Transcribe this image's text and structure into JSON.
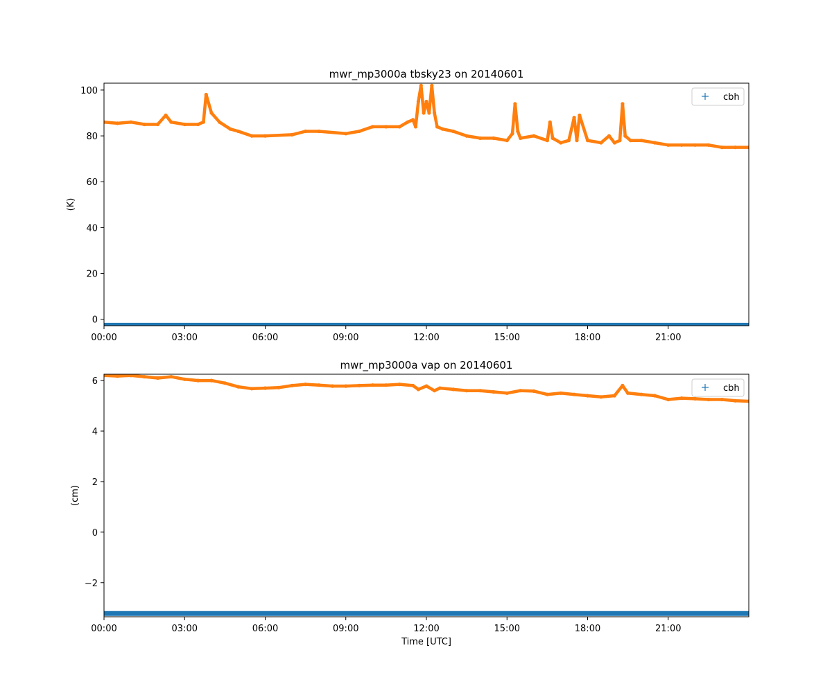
{
  "figure": {
    "background": "#ffffff"
  },
  "chart_data": [
    {
      "type": "line",
      "title": "mwr_mp3000a tbsky23 on 20140601",
      "xlabel": "",
      "ylabel": "(K)",
      "xlim": [
        0,
        24
      ],
      "ylim": [
        -2.8,
        103
      ],
      "xticks": [
        0,
        3,
        6,
        9,
        12,
        15,
        18,
        21
      ],
      "xtick_labels": [
        "00:00",
        "03:00",
        "06:00",
        "09:00",
        "12:00",
        "15:00",
        "18:00",
        "21:00"
      ],
      "yticks": [
        0,
        20,
        40,
        60,
        80,
        100
      ],
      "ytick_labels": [
        "0",
        "20",
        "40",
        "60",
        "80",
        "100"
      ],
      "legend": {
        "position": "top-right",
        "entries": [
          {
            "label": "cbh",
            "marker": "+",
            "color": "#1f77b4"
          }
        ]
      },
      "x_unit": "hours UTC",
      "series": [
        {
          "name": "cbh",
          "color": "#1f77b4",
          "style": "markers",
          "x": [
            0,
            24
          ],
          "values": [
            -2.6,
            -2.6
          ]
        },
        {
          "color": "#ff7f0e",
          "style": "line+markers",
          "x": [
            0,
            0.5,
            1.0,
            1.5,
            2.0,
            2.3,
            2.5,
            3.0,
            3.5,
            3.7,
            3.8,
            4.0,
            4.3,
            4.7,
            5.0,
            5.5,
            6.0,
            7.0,
            7.5,
            8.0,
            9.0,
            9.5,
            10.0,
            10.5,
            11.0,
            11.3,
            11.5,
            11.6,
            11.7,
            11.8,
            11.9,
            12.0,
            12.1,
            12.2,
            12.3,
            12.4,
            12.6,
            13.0,
            13.5,
            14.0,
            14.5,
            15.0,
            15.2,
            15.3,
            15.4,
            15.5,
            16.0,
            16.5,
            16.6,
            16.7,
            17.0,
            17.3,
            17.5,
            17.6,
            17.7,
            18.0,
            18.5,
            18.8,
            19.0,
            19.2,
            19.3,
            19.4,
            19.6,
            20.0,
            20.5,
            21.0,
            21.5,
            22.0,
            22.5,
            23.0,
            23.5,
            24.0
          ],
          "values": [
            86,
            85.5,
            86,
            85,
            85,
            89,
            86,
            85,
            85,
            86,
            98,
            90,
            86,
            83,
            82,
            80,
            80,
            80.5,
            82,
            82,
            81,
            82,
            84,
            84,
            84,
            86,
            87,
            84,
            95,
            102,
            90,
            95,
            90,
            102,
            90,
            84,
            83,
            82,
            80,
            79,
            79,
            78,
            81,
            94,
            82,
            79,
            80,
            78,
            86,
            79,
            77,
            78,
            88,
            78,
            89,
            78,
            77,
            80,
            77,
            78,
            94,
            80,
            78,
            78,
            77,
            76,
            76,
            76,
            76,
            75,
            75,
            75
          ]
        }
      ]
    },
    {
      "type": "line",
      "title": "mwr_mp3000a vap on 20140601",
      "xlabel": "Time [UTC]",
      "ylabel": "(cm)",
      "xlim": [
        0,
        24
      ],
      "ylim": [
        -3.35,
        6.25
      ],
      "xticks": [
        0,
        3,
        6,
        9,
        12,
        15,
        18,
        21
      ],
      "xtick_labels": [
        "00:00",
        "03:00",
        "06:00",
        "09:00",
        "12:00",
        "15:00",
        "18:00",
        "21:00"
      ],
      "yticks": [
        -2,
        0,
        2,
        4,
        6
      ],
      "ytick_labels": [
        "−2",
        "0",
        "2",
        "4",
        "6"
      ],
      "legend": {
        "position": "top-right",
        "entries": [
          {
            "label": "cbh",
            "marker": "+",
            "color": "#1f77b4"
          }
        ]
      },
      "x_unit": "hours UTC",
      "series": [
        {
          "name": "cbh",
          "color": "#1f77b4",
          "style": "markers",
          "x": [
            0,
            24
          ],
          "values": [
            -3.22,
            -3.22
          ]
        },
        {
          "color": "#ff7f0e",
          "style": "line+markers",
          "x": [
            0,
            0.5,
            1.0,
            1.5,
            2.0,
            2.5,
            3.0,
            3.5,
            4.0,
            4.5,
            5.0,
            5.5,
            6.0,
            6.5,
            7.0,
            7.5,
            8.0,
            8.5,
            9.0,
            9.5,
            10.0,
            10.5,
            11.0,
            11.5,
            11.7,
            12.0,
            12.3,
            12.5,
            13.0,
            13.5,
            14.0,
            14.5,
            15.0,
            15.5,
            16.0,
            16.5,
            17.0,
            17.5,
            18.0,
            18.5,
            19.0,
            19.3,
            19.5,
            20.0,
            20.5,
            21.0,
            21.5,
            22.0,
            22.5,
            23.0,
            23.5,
            24.0
          ],
          "values": [
            6.2,
            6.18,
            6.2,
            6.15,
            6.1,
            6.15,
            6.05,
            6.0,
            6.0,
            5.9,
            5.75,
            5.68,
            5.7,
            5.72,
            5.8,
            5.85,
            5.82,
            5.78,
            5.78,
            5.8,
            5.82,
            5.82,
            5.85,
            5.8,
            5.65,
            5.78,
            5.6,
            5.7,
            5.65,
            5.6,
            5.6,
            5.55,
            5.5,
            5.6,
            5.58,
            5.45,
            5.5,
            5.45,
            5.4,
            5.35,
            5.4,
            5.8,
            5.5,
            5.45,
            5.4,
            5.25,
            5.3,
            5.28,
            5.25,
            5.25,
            5.2,
            5.18
          ]
        }
      ]
    }
  ]
}
